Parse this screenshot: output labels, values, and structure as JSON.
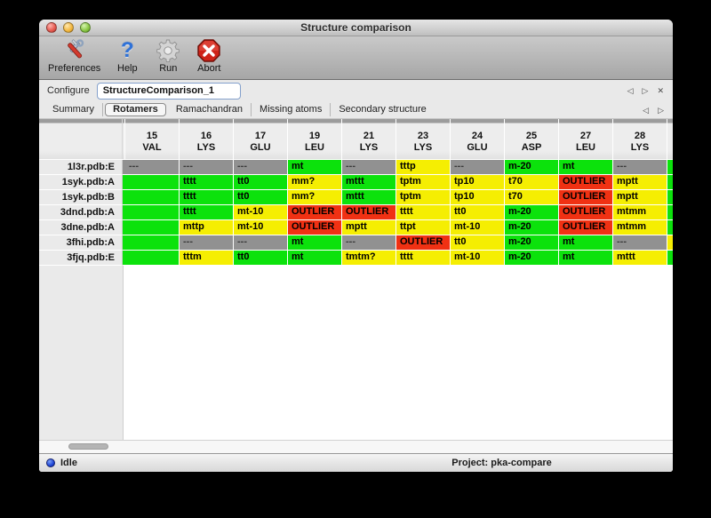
{
  "window": {
    "title": "Structure comparison"
  },
  "toolbar": {
    "items": [
      {
        "label": "Preferences",
        "icon": "tools-icon"
      },
      {
        "label": "Help",
        "icon": "question-icon"
      },
      {
        "label": "Run",
        "icon": "gear-icon"
      },
      {
        "label": "Abort",
        "icon": "abort-icon"
      }
    ]
  },
  "configure": {
    "label": "Configure",
    "value": "StructureComparison_1"
  },
  "nav": {
    "prev": "◁",
    "next": "▷",
    "close": "✕"
  },
  "tabs": {
    "items": [
      "Summary",
      "Rotamers",
      "Ramachandran",
      "Missing atoms",
      "Secondary structure"
    ],
    "selected": "Rotamers"
  },
  "colors": {
    "green": "#0ce20c",
    "yellow": "#f5ee02",
    "red": "#f03113",
    "gray": "#919191"
  },
  "table": {
    "columns": [
      {
        "num": "15",
        "res": "VAL"
      },
      {
        "num": "16",
        "res": "LYS"
      },
      {
        "num": "17",
        "res": "GLU"
      },
      {
        "num": "19",
        "res": "LEU"
      },
      {
        "num": "21",
        "res": "LYS"
      },
      {
        "num": "23",
        "res": "LYS"
      },
      {
        "num": "24",
        "res": "GLU"
      },
      {
        "num": "25",
        "res": "ASP"
      },
      {
        "num": "27",
        "res": "LEU"
      },
      {
        "num": "28",
        "res": "LYS"
      }
    ],
    "rows": [
      {
        "label": "1l3r.pdb:E",
        "left_sliver": "gray",
        "right_sliver": "green",
        "cells": [
          {
            "color": "gray",
            "text": "---"
          },
          {
            "color": "gray",
            "text": "---"
          },
          {
            "color": "gray",
            "text": "---"
          },
          {
            "color": "green",
            "text": "mt"
          },
          {
            "color": "gray",
            "text": "---"
          },
          {
            "color": "yellow",
            "text": "tttp"
          },
          {
            "color": "gray",
            "text": "---"
          },
          {
            "color": "green",
            "text": "m-20"
          },
          {
            "color": "green",
            "text": "mt"
          },
          {
            "color": "gray",
            "text": "---"
          }
        ]
      },
      {
        "label": "1syk.pdb:A",
        "left_sliver": "green",
        "right_sliver": "green",
        "cells": [
          {
            "color": "green",
            "text": ""
          },
          {
            "color": "green",
            "text": "tttt"
          },
          {
            "color": "green",
            "text": "tt0"
          },
          {
            "color": "yellow",
            "text": "mm?"
          },
          {
            "color": "green",
            "text": "mttt"
          },
          {
            "color": "yellow",
            "text": "tptm"
          },
          {
            "color": "yellow",
            "text": "tp10"
          },
          {
            "color": "yellow",
            "text": "t70"
          },
          {
            "color": "red",
            "text": "OUTLIER"
          },
          {
            "color": "yellow",
            "text": "mptt"
          }
        ]
      },
      {
        "label": "1syk.pdb:B",
        "left_sliver": "green",
        "right_sliver": "green",
        "cells": [
          {
            "color": "green",
            "text": ""
          },
          {
            "color": "green",
            "text": "tttt"
          },
          {
            "color": "green",
            "text": "tt0"
          },
          {
            "color": "yellow",
            "text": "mm?"
          },
          {
            "color": "green",
            "text": "mttt"
          },
          {
            "color": "yellow",
            "text": "tptm"
          },
          {
            "color": "yellow",
            "text": "tp10"
          },
          {
            "color": "yellow",
            "text": "t70"
          },
          {
            "color": "red",
            "text": "OUTLIER"
          },
          {
            "color": "yellow",
            "text": "mptt"
          }
        ]
      },
      {
        "label": "3dnd.pdb:A",
        "left_sliver": "green",
        "right_sliver": "green",
        "cells": [
          {
            "color": "green",
            "text": ""
          },
          {
            "color": "green",
            "text": "tttt"
          },
          {
            "color": "yellow",
            "text": "mt-10"
          },
          {
            "color": "red",
            "text": "OUTLIER"
          },
          {
            "color": "red",
            "text": "OUTLIER"
          },
          {
            "color": "yellow",
            "text": "tttt"
          },
          {
            "color": "yellow",
            "text": "tt0"
          },
          {
            "color": "green",
            "text": "m-20"
          },
          {
            "color": "red",
            "text": "OUTLIER"
          },
          {
            "color": "yellow",
            "text": "mtmm"
          }
        ]
      },
      {
        "label": "3dne.pdb:A",
        "left_sliver": "green",
        "right_sliver": "green",
        "cells": [
          {
            "color": "green",
            "text": ""
          },
          {
            "color": "yellow",
            "text": "mttp"
          },
          {
            "color": "yellow",
            "text": "mt-10"
          },
          {
            "color": "red",
            "text": "OUTLIER"
          },
          {
            "color": "yellow",
            "text": "mptt"
          },
          {
            "color": "yellow",
            "text": "ttpt"
          },
          {
            "color": "yellow",
            "text": "mt-10"
          },
          {
            "color": "green",
            "text": "m-20"
          },
          {
            "color": "red",
            "text": "OUTLIER"
          },
          {
            "color": "yellow",
            "text": "mtmm"
          }
        ]
      },
      {
        "label": "3fhi.pdb:A",
        "left_sliver": "green",
        "right_sliver": "yellow",
        "cells": [
          {
            "color": "green",
            "text": ""
          },
          {
            "color": "gray",
            "text": "---"
          },
          {
            "color": "gray",
            "text": "---"
          },
          {
            "color": "green",
            "text": "mt"
          },
          {
            "color": "gray",
            "text": "---"
          },
          {
            "color": "red",
            "text": "OUTLIER"
          },
          {
            "color": "yellow",
            "text": "tt0"
          },
          {
            "color": "green",
            "text": "m-20"
          },
          {
            "color": "green",
            "text": "mt"
          },
          {
            "color": "gray",
            "text": "---"
          }
        ]
      },
      {
        "label": "3fjq.pdb:E",
        "left_sliver": "green",
        "right_sliver": "green",
        "cells": [
          {
            "color": "green",
            "text": ""
          },
          {
            "color": "yellow",
            "text": "tttm"
          },
          {
            "color": "green",
            "text": "tt0"
          },
          {
            "color": "green",
            "text": "mt"
          },
          {
            "color": "yellow",
            "text": "tmtm?"
          },
          {
            "color": "yellow",
            "text": "tttt"
          },
          {
            "color": "yellow",
            "text": "mt-10"
          },
          {
            "color": "green",
            "text": "m-20"
          },
          {
            "color": "green",
            "text": "mt"
          },
          {
            "color": "yellow",
            "text": "mttt"
          }
        ]
      }
    ]
  },
  "statusbar": {
    "status": "Idle",
    "project": "Project: pka-compare"
  }
}
